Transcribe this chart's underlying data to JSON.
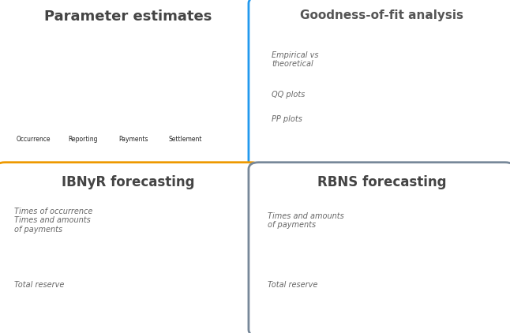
{
  "bg_color": "#111111",
  "panel_bg": "#ffffff",
  "panels": [
    {
      "title": "Parameter estimates",
      "title_color": "#444444",
      "title_fontsize": 13,
      "border_color": "#55aa33",
      "border_width": 2.5
    },
    {
      "title": "Goodness-of-fit analysis",
      "title_color": "#555555",
      "title_fontsize": 11,
      "border_color": "#2299ee",
      "border_width": 2.5,
      "text_items": [
        "Empirical vs\ntheoretical",
        "QQ plots",
        "PP plots"
      ],
      "text_color": "#666666"
    },
    {
      "title": "IBNyR forecasting",
      "title_color": "#444444",
      "title_fontsize": 12,
      "border_color": "#ee9900",
      "border_width": 2.5,
      "text_items": [
        "Times of occurrence\nTimes and amounts\nof payments",
        "Total reserve"
      ],
      "text_color": "#666666"
    },
    {
      "title": "RBNS forecasting",
      "title_color": "#444444",
      "title_fontsize": 12,
      "border_color": "#778899",
      "border_width": 2.5,
      "text_items": [
        "Times and amounts\nof payments",
        "Total reserve"
      ],
      "text_color": "#666666"
    }
  ]
}
